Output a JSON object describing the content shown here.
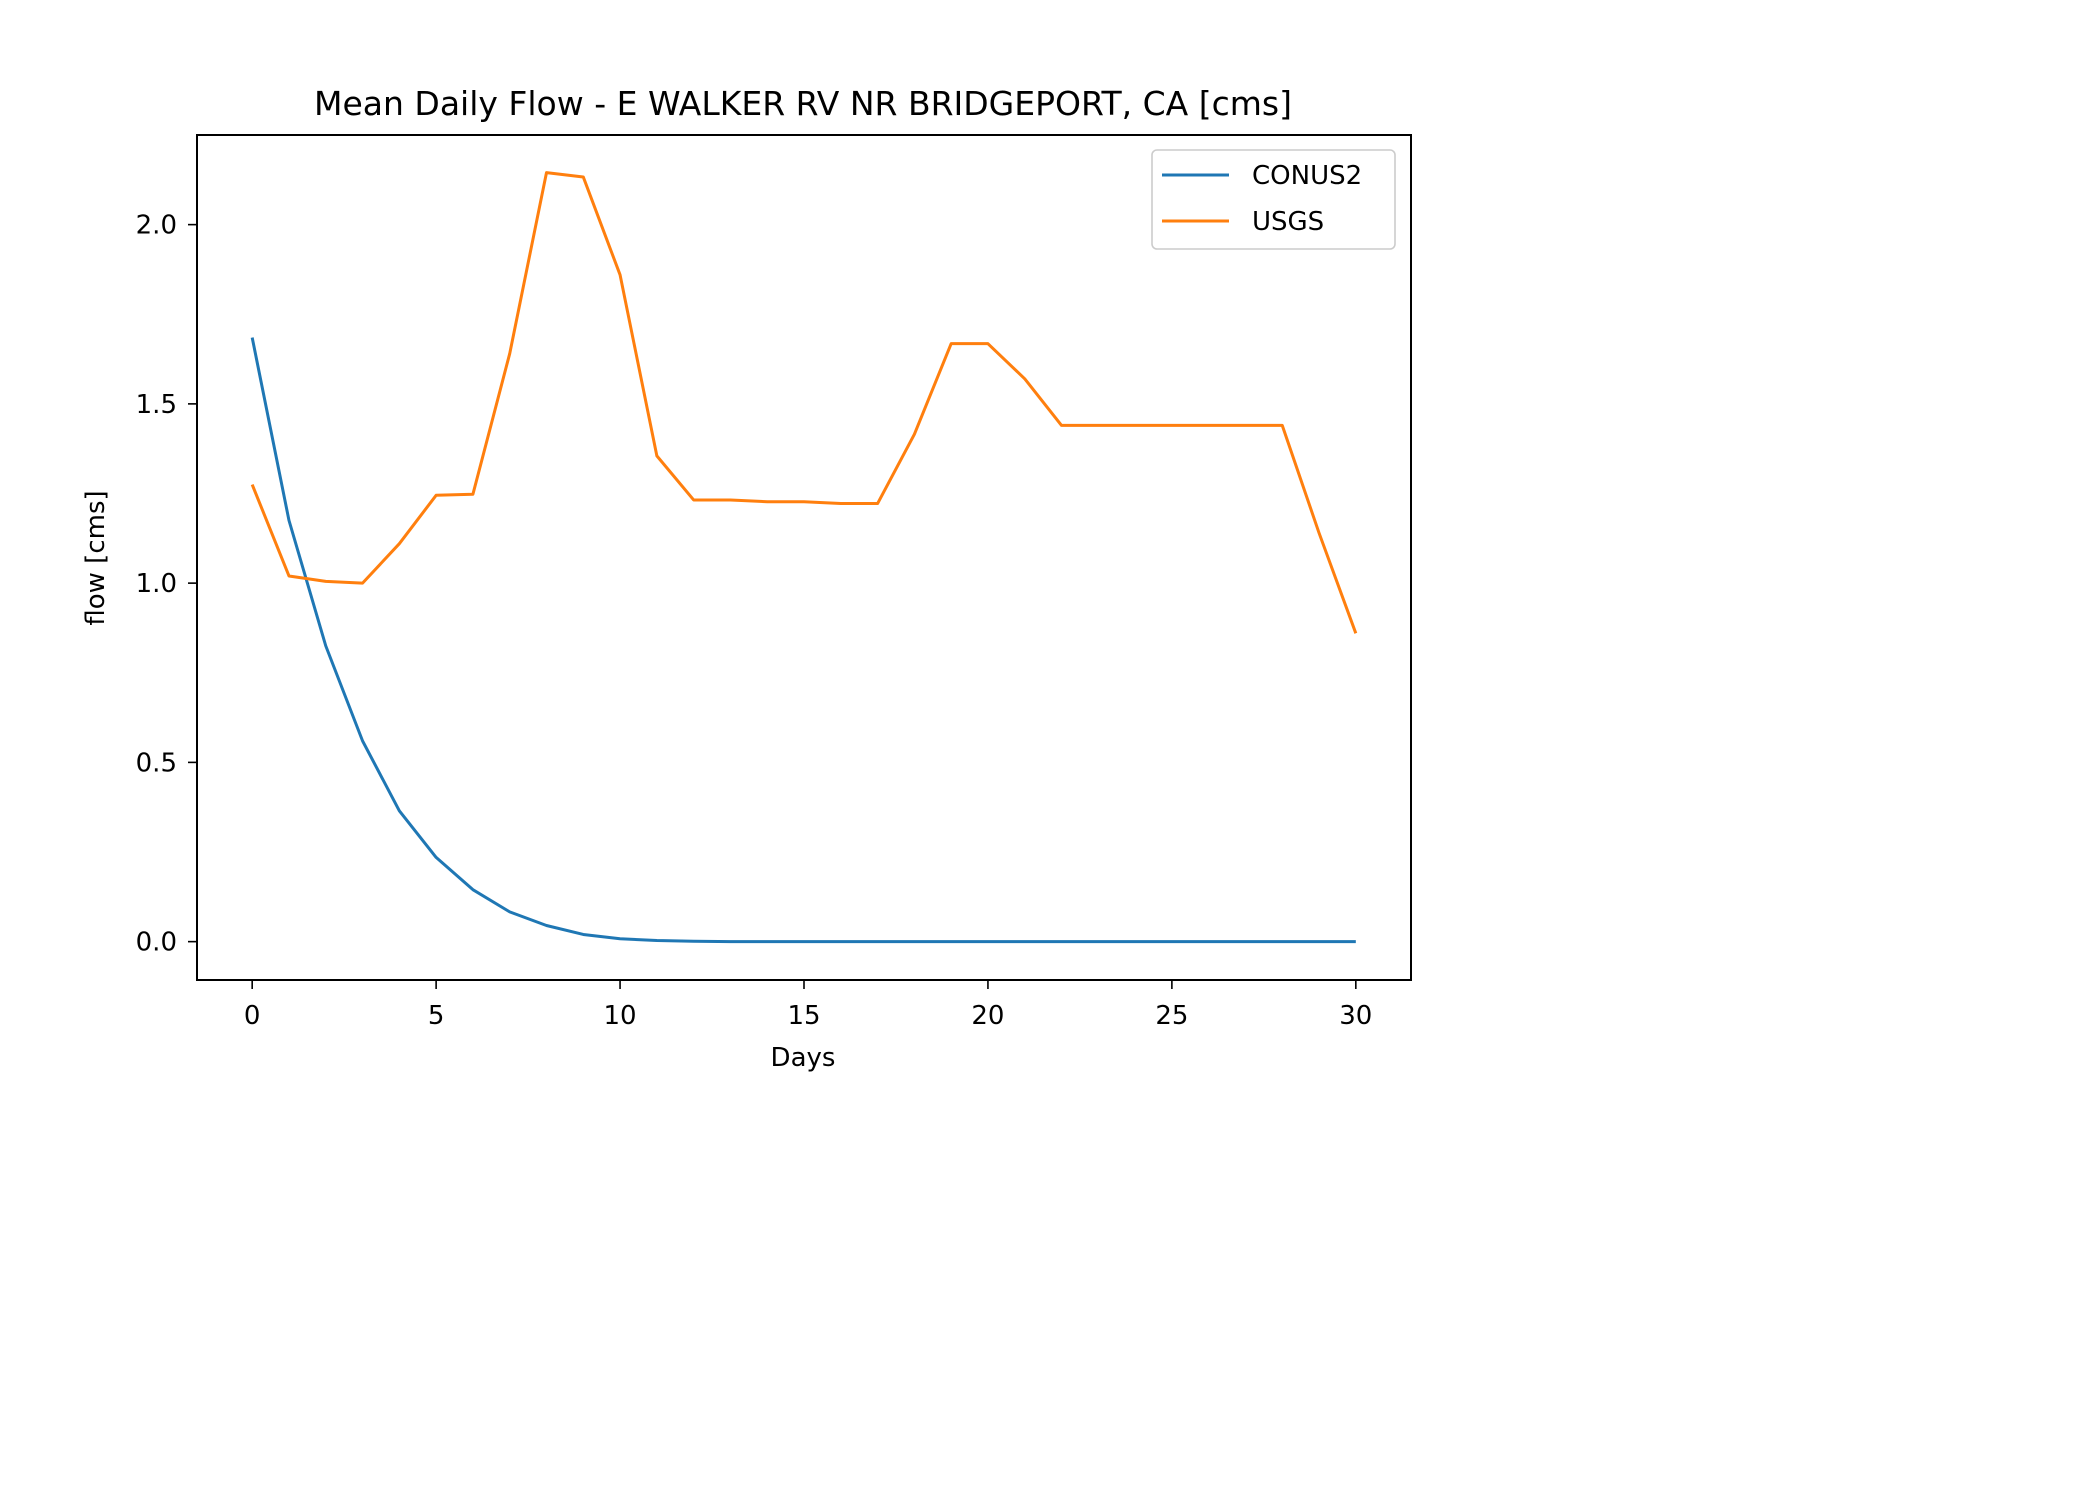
{
  "chart_data": {
    "type": "line",
    "title": "Mean Daily Flow - E WALKER RV NR BRIDGEPORT, CA [cms]",
    "xlabel": "Days",
    "ylabel": "flow [cms]",
    "xlim": [
      -1.5,
      31.5
    ],
    "ylim": [
      -0.107,
      2.25
    ],
    "x_ticks": [
      0,
      5,
      10,
      15,
      20,
      25,
      30
    ],
    "x_tick_labels": [
      "0",
      "5",
      "10",
      "15",
      "20",
      "25",
      "30"
    ],
    "y_ticks": [
      0.0,
      0.5,
      1.0,
      1.5,
      2.0
    ],
    "y_tick_labels": [
      "0.0",
      "0.5",
      "1.0",
      "1.5",
      "2.0"
    ],
    "grid": false,
    "legend_position": "top-right",
    "x": [
      0,
      1,
      2,
      3,
      4,
      5,
      6,
      7,
      8,
      9,
      10,
      11,
      12,
      13,
      14,
      15,
      16,
      17,
      18,
      19,
      20,
      21,
      22,
      23,
      24,
      25,
      26,
      27,
      28,
      29,
      30
    ],
    "series": [
      {
        "name": "CONUS2",
        "color": "#1f77b4",
        "values": [
          1.685,
          1.175,
          0.825,
          0.56,
          0.365,
          0.235,
          0.145,
          0.083,
          0.045,
          0.02,
          0.008,
          0.003,
          0.001,
          0.0,
          0.0,
          0.0,
          0.0,
          0.0,
          0.0,
          0.0,
          0.0,
          0.0,
          0.0,
          0.0,
          0.0,
          0.0,
          0.0,
          0.0,
          0.0,
          0.0,
          0.0
        ]
      },
      {
        "name": "USGS",
        "color": "#ff7f0e",
        "values": [
          1.275,
          1.02,
          1.005,
          1.0,
          1.11,
          1.245,
          1.248,
          1.64,
          2.145,
          2.133,
          1.86,
          1.355,
          1.232,
          1.232,
          1.227,
          1.227,
          1.222,
          1.222,
          1.415,
          1.668,
          1.668,
          1.57,
          1.44,
          1.44,
          1.44,
          1.44,
          1.44,
          1.44,
          1.44,
          1.14,
          0.86
        ]
      }
    ]
  }
}
